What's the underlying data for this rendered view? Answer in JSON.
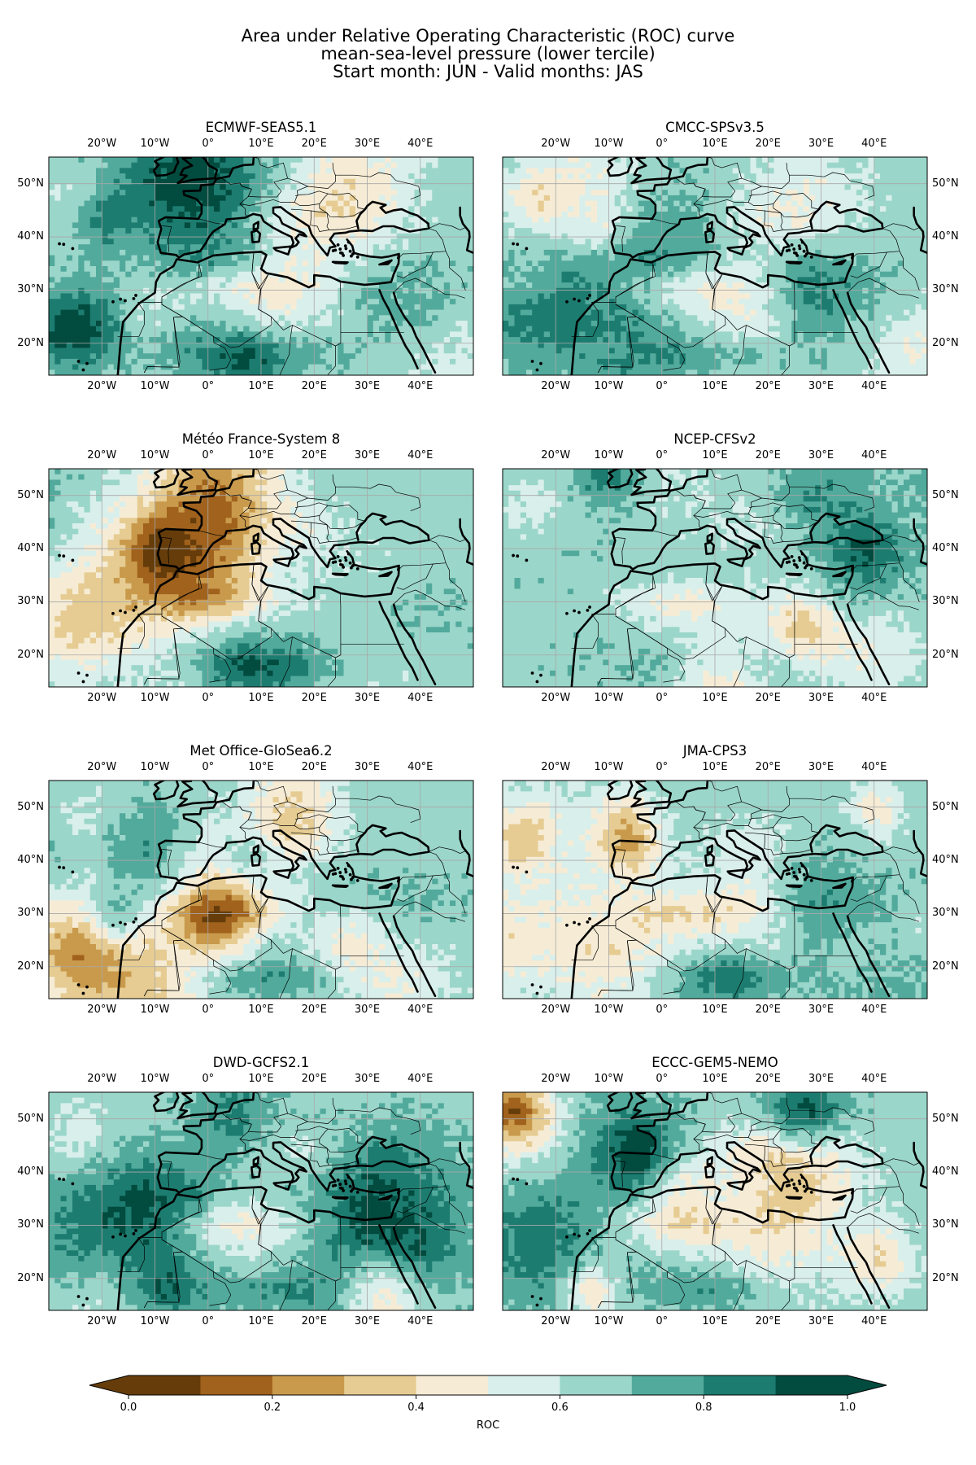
{
  "figure": {
    "title_lines": [
      "Area under Relative Operating Characteristic (ROC) curve",
      "mean-sea-level pressure (lower tercile)",
      "Start month: JUN - Valid months: JAS"
    ]
  },
  "map_extent": {
    "lon": [
      -30,
      50
    ],
    "lat": [
      14,
      55
    ]
  },
  "lon_ticks": [
    -20,
    -10,
    0,
    10,
    20,
    30,
    40
  ],
  "lon_tick_labels": [
    "20°W",
    "10°W",
    "0°",
    "10°E",
    "20°E",
    "30°E",
    "40°E"
  ],
  "lat_ticks": [
    50,
    40,
    30,
    20
  ],
  "lat_tick_labels": [
    "50°N",
    "40°N",
    "30°N",
    "20°N"
  ],
  "panels": [
    {
      "title": "ECMWF-SEAS5.1",
      "seed": 11
    },
    {
      "title": "CMCC-SPSv3.5",
      "seed": 23
    },
    {
      "title": "Météo France-System 8",
      "seed": 37
    },
    {
      "title": "NCEP-CFSv2",
      "seed": 41
    },
    {
      "title": "Met Office-GloSea6.2",
      "seed": 53
    },
    {
      "title": "JMA-CPS3",
      "seed": 67
    },
    {
      "title": "DWD-GCFS2.1",
      "seed": 79
    },
    {
      "title": "ECCC-GEM5-NEMO",
      "seed": 83
    }
  ],
  "colorbar": {
    "label": "ROC",
    "ticks": [
      "0.0",
      "0.2",
      "0.4",
      "0.6",
      "0.8",
      "1.0"
    ],
    "levels": [
      0.0,
      0.1,
      0.2,
      0.3,
      0.4,
      0.5,
      0.6,
      0.7,
      0.8,
      0.9,
      1.0
    ],
    "colors": [
      "#653c0a",
      "#a0621d",
      "#c99a4c",
      "#e6cc92",
      "#f6ecd6",
      "#d9efeb",
      "#9bd6ca",
      "#52aa9c",
      "#1d7c70",
      "#024b3f"
    ],
    "extend": "both"
  }
}
